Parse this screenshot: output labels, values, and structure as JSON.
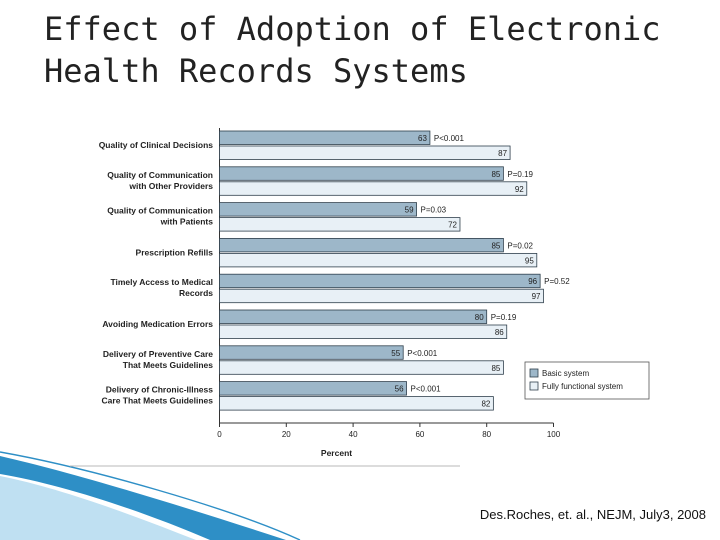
{
  "slide": {
    "title_line1": "Effect of Adoption of Electronic",
    "title_line2": "Health Records Systems",
    "citation": "Des.Roches, et. al., NEJM, July3, 2008"
  },
  "colors": {
    "basic": "#9db7c9",
    "full": "#e8f0f6",
    "bar_stroke": "#2f3f4c",
    "footer_blue": "#2e8fc6",
    "footer_light": "#bfe0f2"
  },
  "chart_data": {
    "type": "bar",
    "orientation": "horizontal",
    "xlabel": "Percent",
    "xlim": [
      0,
      100
    ],
    "xticks": [
      0,
      20,
      40,
      60,
      80,
      100
    ],
    "categories": [
      [
        "Quality of Clinical Decisions"
      ],
      [
        "Quality of Communication",
        "with Other Providers"
      ],
      [
        "Quality of Communication",
        "with Patients"
      ],
      [
        "Prescription Refills"
      ],
      [
        "Timely Access to Medical",
        "Records"
      ],
      [
        "Avoiding Medication Errors"
      ],
      [
        "Delivery of Preventive Care",
        "That Meets Guidelines"
      ],
      [
        "Delivery of Chronic-Illness",
        "Care That Meets Guidelines"
      ]
    ],
    "series": [
      {
        "name": "Basic system",
        "values": [
          63,
          85,
          59,
          85,
          96,
          80,
          55,
          56
        ]
      },
      {
        "name": "Fully functional system",
        "values": [
          87,
          92,
          72,
          95,
          97,
          86,
          85,
          82
        ]
      }
    ],
    "p_values": [
      "P<0.001",
      "P=0.19",
      "P=0.03",
      "P=0.02",
      "P=0.52",
      "P=0.19",
      "P<0.001",
      "P<0.001"
    ],
    "legend": {
      "position": "right",
      "entries": [
        "Basic system",
        "Fully functional system"
      ]
    }
  }
}
